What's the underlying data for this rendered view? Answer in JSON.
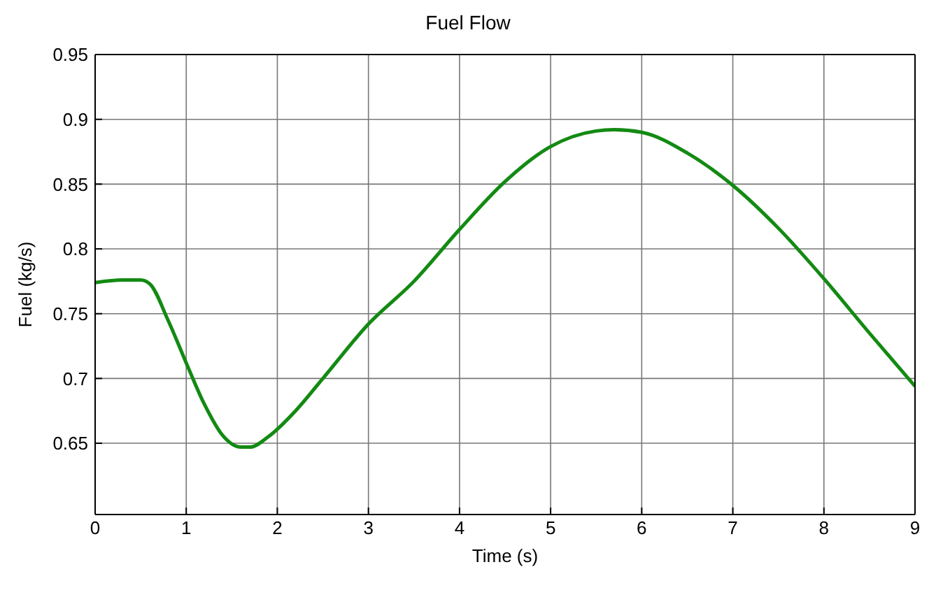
{
  "chart_data": {
    "type": "line",
    "title": "Fuel Flow",
    "xlabel": "Time (s)",
    "ylabel": "Fuel (kg/s)",
    "xlim": [
      0,
      9
    ],
    "xticks": [
      0,
      1,
      2,
      3,
      4,
      5,
      6,
      7,
      8,
      9
    ],
    "ylim": [
      0.595,
      0.95
    ],
    "yticks": [
      0.65,
      0.7,
      0.75,
      0.8,
      0.85,
      0.9,
      0.95
    ],
    "grid": true,
    "legend": false,
    "marker": "none",
    "line_style": "solid",
    "series": [
      {
        "color": "#138a13",
        "x": [
          0,
          0.3,
          0.5,
          0.6,
          0.8,
          1.0,
          1.2,
          1.4,
          1.6,
          1.7,
          1.9,
          2.2,
          2.5,
          3.0,
          3.5,
          4.0,
          4.5,
          5.0,
          5.5,
          5.7,
          6.0,
          6.5,
          7.0,
          7.5,
          8.0,
          8.5,
          9.0
        ],
        "values": [
          0.774,
          0.776,
          0.776,
          0.773,
          0.745,
          0.712,
          0.68,
          0.656,
          0.647,
          0.647,
          0.655,
          0.675,
          0.7,
          0.742,
          0.775,
          0.815,
          0.852,
          0.879,
          0.891,
          0.892,
          0.89,
          0.874,
          0.849,
          0.816,
          0.777,
          0.735,
          0.694
        ]
      }
    ]
  }
}
